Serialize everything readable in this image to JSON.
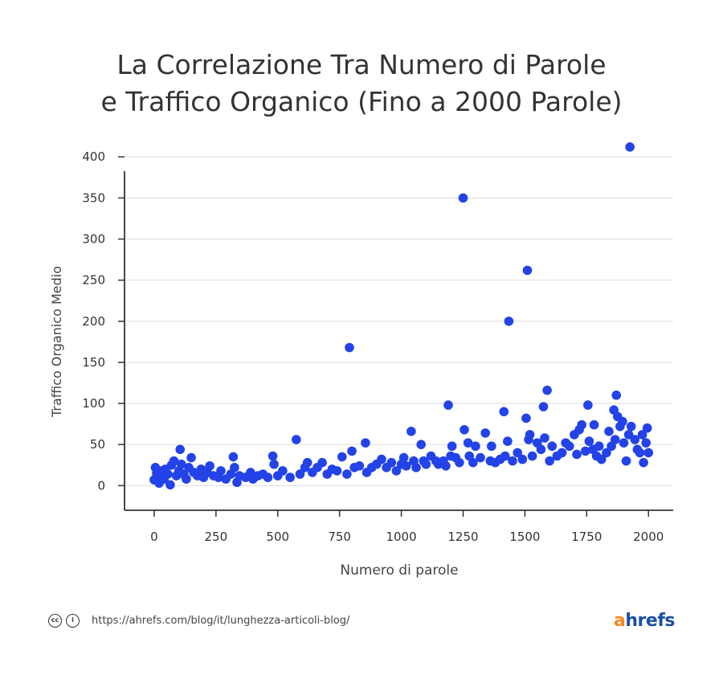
{
  "title_line1": "La Correlazione Tra Numero di Parole",
  "title_line2": "e Traffico Organico (Fino a 2000 Parole)",
  "footer": {
    "cc_icon": "creative-commons-icon",
    "by_icon": "attribution-icon",
    "url": "https://ahrefs.com/blog/it/lunghezza-articoli-blog/",
    "logo_a": "a",
    "logo_rest": "hrefs"
  },
  "colors": {
    "point": "#2343e8",
    "axis": "#333333",
    "grid": "#dddddd",
    "logo_a": "#f5891f",
    "logo_rest": "#1a4fa3"
  },
  "chart_data": {
    "type": "scatter",
    "xlabel": "Numero di parole",
    "ylabel": "Traffico Organico Medio",
    "xlim": [
      -120,
      2100
    ],
    "ylim": [
      -30,
      410
    ],
    "xticks": [
      0,
      250,
      500,
      750,
      1000,
      1250,
      1500,
      1750,
      2000
    ],
    "yticks": [
      0,
      50,
      100,
      150,
      200,
      250,
      300,
      350,
      400
    ],
    "grid": true,
    "series": [
      {
        "points": [
          [
            0,
            7
          ],
          [
            5,
            22
          ],
          [
            10,
            15
          ],
          [
            20,
            3
          ],
          [
            25,
            12
          ],
          [
            30,
            18
          ],
          [
            40,
            8
          ],
          [
            45,
            20
          ],
          [
            55,
            14
          ],
          [
            65,
            1
          ],
          [
            70,
            25
          ],
          [
            80,
            30
          ],
          [
            90,
            12
          ],
          [
            100,
            18
          ],
          [
            105,
            44
          ],
          [
            110,
            26
          ],
          [
            120,
            14
          ],
          [
            130,
            8
          ],
          [
            140,
            22
          ],
          [
            150,
            34
          ],
          [
            160,
            16
          ],
          [
            175,
            12
          ],
          [
            190,
            20
          ],
          [
            200,
            10
          ],
          [
            215,
            16
          ],
          [
            225,
            24
          ],
          [
            240,
            12
          ],
          [
            260,
            10
          ],
          [
            270,
            18
          ],
          [
            290,
            8
          ],
          [
            310,
            14
          ],
          [
            320,
            35
          ],
          [
            325,
            22
          ],
          [
            335,
            4
          ],
          [
            345,
            12
          ],
          [
            370,
            10
          ],
          [
            390,
            16
          ],
          [
            400,
            8
          ],
          [
            420,
            12
          ],
          [
            440,
            14
          ],
          [
            460,
            10
          ],
          [
            480,
            36
          ],
          [
            485,
            26
          ],
          [
            500,
            12
          ],
          [
            520,
            18
          ],
          [
            550,
            10
          ],
          [
            575,
            56
          ],
          [
            590,
            14
          ],
          [
            610,
            22
          ],
          [
            620,
            28
          ],
          [
            640,
            16
          ],
          [
            660,
            22
          ],
          [
            680,
            28
          ],
          [
            700,
            14
          ],
          [
            720,
            20
          ],
          [
            740,
            18
          ],
          [
            760,
            35
          ],
          [
            780,
            14
          ],
          [
            790,
            168
          ],
          [
            800,
            42
          ],
          [
            810,
            22
          ],
          [
            830,
            24
          ],
          [
            855,
            52
          ],
          [
            860,
            16
          ],
          [
            880,
            22
          ],
          [
            900,
            26
          ],
          [
            920,
            32
          ],
          [
            940,
            22
          ],
          [
            960,
            28
          ],
          [
            980,
            18
          ],
          [
            1000,
            26
          ],
          [
            1010,
            34
          ],
          [
            1020,
            24
          ],
          [
            1040,
            66
          ],
          [
            1050,
            30
          ],
          [
            1060,
            22
          ],
          [
            1080,
            50
          ],
          [
            1090,
            30
          ],
          [
            1100,
            26
          ],
          [
            1120,
            36
          ],
          [
            1140,
            30
          ],
          [
            1150,
            26
          ],
          [
            1170,
            30
          ],
          [
            1180,
            24
          ],
          [
            1190,
            98
          ],
          [
            1200,
            36
          ],
          [
            1205,
            48
          ],
          [
            1220,
            34
          ],
          [
            1235,
            28
          ],
          [
            1250,
            350
          ],
          [
            1255,
            68
          ],
          [
            1270,
            52
          ],
          [
            1275,
            36
          ],
          [
            1290,
            28
          ],
          [
            1300,
            48
          ],
          [
            1320,
            34
          ],
          [
            1340,
            64
          ],
          [
            1360,
            30
          ],
          [
            1365,
            48
          ],
          [
            1380,
            28
          ],
          [
            1400,
            32
          ],
          [
            1415,
            90
          ],
          [
            1420,
            36
          ],
          [
            1430,
            54
          ],
          [
            1435,
            200
          ],
          [
            1450,
            30
          ],
          [
            1470,
            40
          ],
          [
            1490,
            32
          ],
          [
            1505,
            82
          ],
          [
            1510,
            262
          ],
          [
            1515,
            56
          ],
          [
            1520,
            62
          ],
          [
            1530,
            36
          ],
          [
            1550,
            52
          ],
          [
            1565,
            44
          ],
          [
            1575,
            96
          ],
          [
            1580,
            58
          ],
          [
            1590,
            116
          ],
          [
            1600,
            30
          ],
          [
            1610,
            48
          ],
          [
            1630,
            36
          ],
          [
            1650,
            40
          ],
          [
            1665,
            52
          ],
          [
            1680,
            48
          ],
          [
            1700,
            62
          ],
          [
            1710,
            38
          ],
          [
            1720,
            68
          ],
          [
            1730,
            74
          ],
          [
            1745,
            42
          ],
          [
            1755,
            98
          ],
          [
            1760,
            54
          ],
          [
            1775,
            44
          ],
          [
            1780,
            74
          ],
          [
            1790,
            36
          ],
          [
            1800,
            48
          ],
          [
            1810,
            32
          ],
          [
            1830,
            40
          ],
          [
            1840,
            66
          ],
          [
            1850,
            48
          ],
          [
            1860,
            92
          ],
          [
            1865,
            56
          ],
          [
            1870,
            110
          ],
          [
            1875,
            84
          ],
          [
            1885,
            72
          ],
          [
            1895,
            78
          ],
          [
            1900,
            52
          ],
          [
            1910,
            30
          ],
          [
            1920,
            62
          ],
          [
            1925,
            412
          ],
          [
            1930,
            72
          ],
          [
            1945,
            56
          ],
          [
            1955,
            44
          ],
          [
            1965,
            40
          ],
          [
            1975,
            62
          ],
          [
            1980,
            28
          ],
          [
            1990,
            52
          ],
          [
            1995,
            70
          ],
          [
            2000,
            40
          ]
        ]
      }
    ]
  }
}
